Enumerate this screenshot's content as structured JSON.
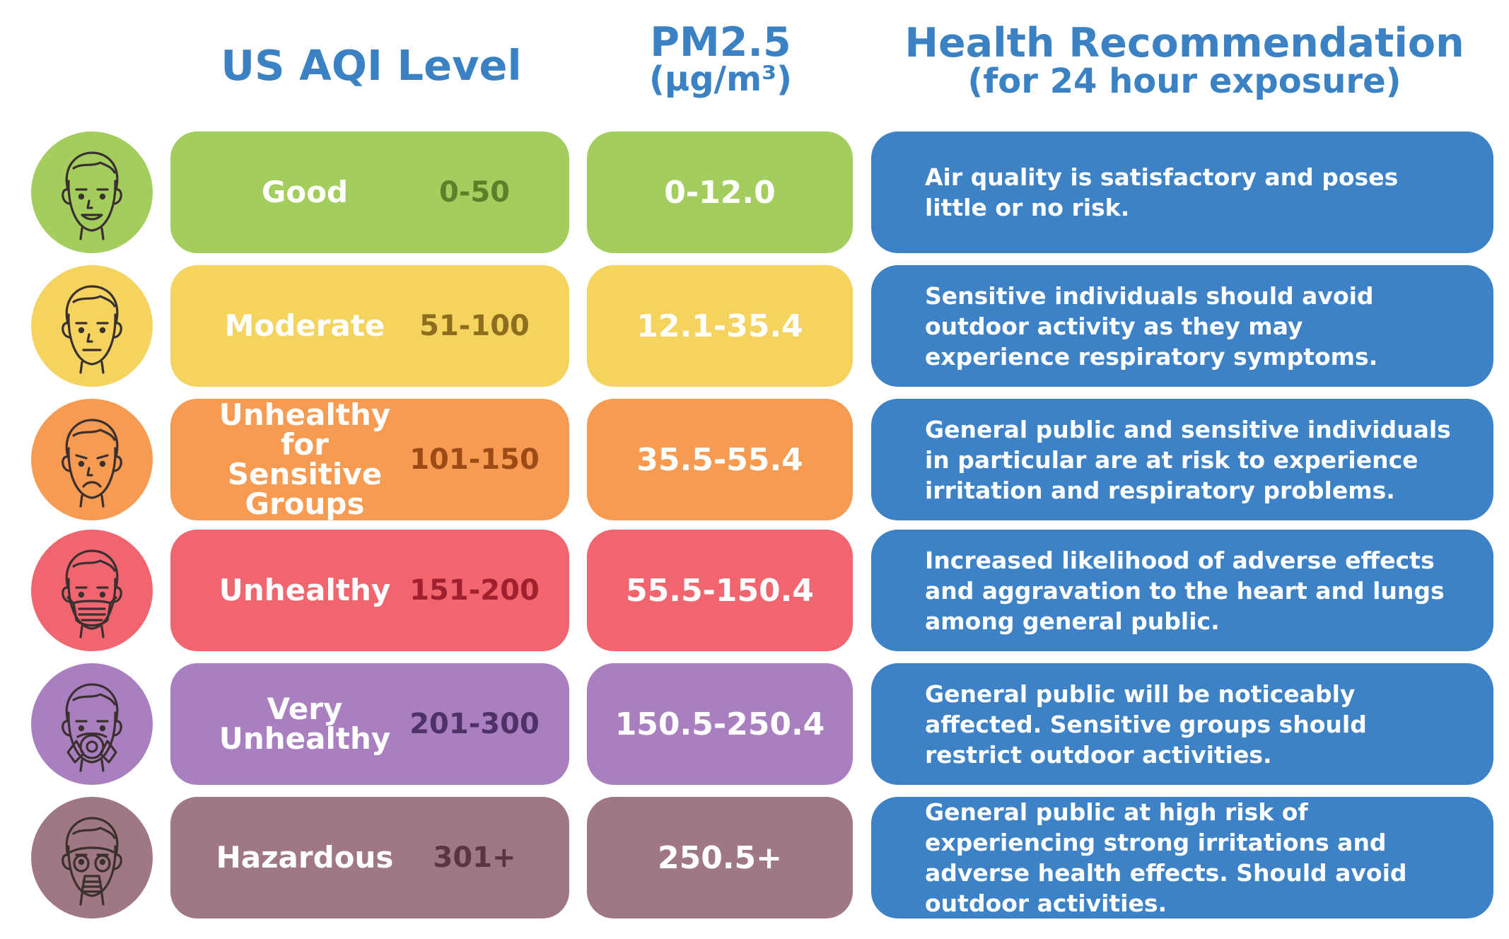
{
  "header": {
    "aqi_title": "US AQI Level",
    "pm_title": "PM2.5",
    "pm_unit": "(µg/m³)",
    "health_title": "Health Recommendation",
    "health_sub": "(for 24 hour exposure)"
  },
  "rows": [
    {
      "level": "Good",
      "aqi": "0-50",
      "pm": "0-12.0",
      "rec": "Air quality is satisfactory and poses little or no risk.",
      "color": "#a3cd5c",
      "range_color": "#5c7f2a",
      "face": "happy-face-icon"
    },
    {
      "level": "Moderate",
      "aqi": "51-100",
      "pm": "12.1-35.4",
      "rec": "Sensitive individuals should avoid outdoor activity as they may experience respiratory symptoms.",
      "color": "#f4d35e",
      "range_color": "#8c6e1e",
      "face": "neutral-face-icon"
    },
    {
      "level": "Unhealthy for Sensitive Groups",
      "aqi": "101-150",
      "pm": "35.5-55.4",
      "rec": "General public and sensitive individuals in particular are at risk to experience irritation and respiratory problems.",
      "color": "#f79a52",
      "range_color": "#9c4a16",
      "face": "sad-face-icon"
    },
    {
      "level": "Unhealthy",
      "aqi": "151-200",
      "pm": "55.5-150.4",
      "rec": "Increased likelihood of adverse effects and aggravation to the heart and lungs among general public.",
      "color": "#f0656e",
      "range_color": "#a02030",
      "face": "face-mask-icon"
    },
    {
      "level": "Very Unhealthy",
      "aqi": "201-300",
      "pm": "150.5-250.4",
      "rec": "General public will be noticeably affected. Sensitive groups should restrict outdoor activities.",
      "color": "#a97fbf",
      "range_color": "#4e3166",
      "face": "respirator-face-icon"
    },
    {
      "level": "Hazardous",
      "aqi": "301+",
      "pm": "250.5+",
      "rec": "General public at high risk of experiencing strong irritations and adverse health effects. Should avoid outdoor activities.",
      "color": "#a07884",
      "range_color": "#5c3442",
      "face": "gas-mask-face-icon"
    }
  ]
}
